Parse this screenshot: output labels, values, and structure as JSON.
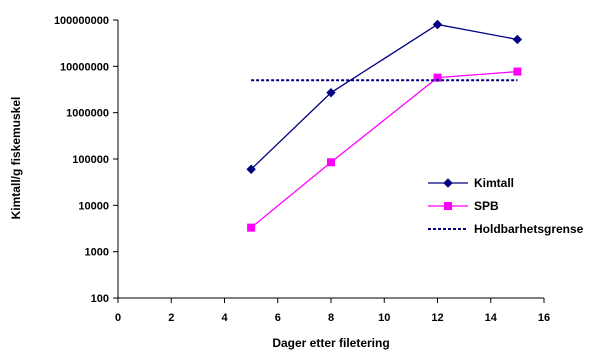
{
  "chart_data": {
    "type": "line",
    "title": "",
    "xlabel": "Dager etter filetering",
    "ylabel": "Kimtall/g fiskemuskel",
    "xlim": [
      0,
      16
    ],
    "ylim": [
      100,
      100000000
    ],
    "yscale": "log",
    "grid": false,
    "legend_position": "right",
    "x_ticks": [
      "0",
      "2",
      "4",
      "6",
      "8",
      "10",
      "12",
      "14",
      "16"
    ],
    "y_ticks": [
      "100",
      "1000",
      "10000",
      "100000",
      "1000000",
      "10000000",
      "100000000"
    ],
    "series": [
      {
        "name": "Kimtall",
        "color": "#000080",
        "marker": "diamond",
        "line": "solid",
        "x": [
          5,
          8,
          12,
          15
        ],
        "y": [
          60000,
          2700000,
          80000000,
          38000000
        ]
      },
      {
        "name": "SPB",
        "color": "#ff00ff",
        "marker": "square",
        "line": "solid",
        "x": [
          5,
          8,
          12,
          15
        ],
        "y": [
          3300,
          85000,
          5700000,
          7700000
        ]
      },
      {
        "name": "Holdbarhetsgrense",
        "color": "#000080",
        "marker": "none",
        "line": "dotted",
        "x": [
          5,
          15
        ],
        "y": [
          5000000,
          5000000
        ]
      }
    ]
  }
}
